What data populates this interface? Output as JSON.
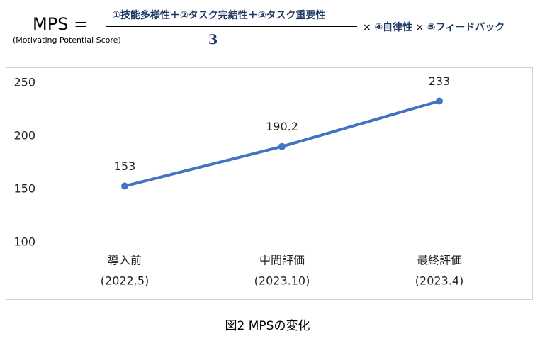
{
  "formula": {
    "lhs": "MPS =",
    "lhs_note": "(Motivating Potential Score)",
    "numerator": "①技能多様性＋②タスク完結性＋③タスク重要性",
    "denominator": "3",
    "times": "×",
    "factors": [
      "④自律性",
      "⑤フィードバック"
    ]
  },
  "chart_data": {
    "type": "line",
    "categories": [
      [
        "導入前",
        "(2022.5)"
      ],
      [
        "中間評価",
        "(2023.10)"
      ],
      [
        "最終評価",
        "(2023.4)"
      ]
    ],
    "series": [
      {
        "name": "MPS",
        "color": "#4472c4",
        "values": [
          153,
          190.2,
          233
        ]
      }
    ],
    "ylim": [
      100,
      250
    ],
    "yticks": [
      100,
      150,
      200,
      250
    ],
    "grid": false
  },
  "caption": "図2  MPSの変化"
}
